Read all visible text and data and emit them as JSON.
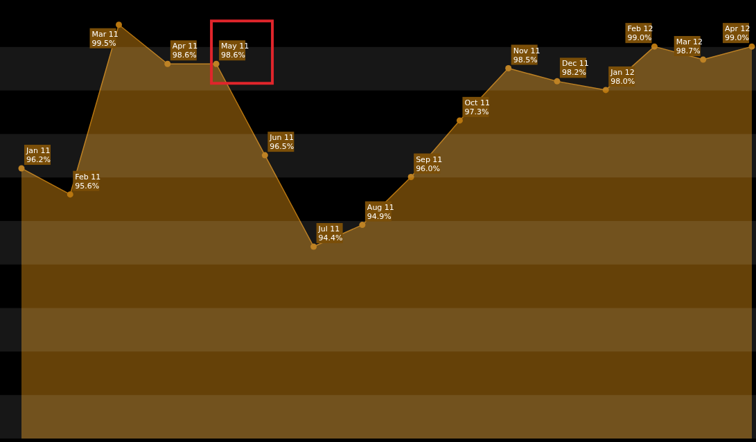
{
  "chart_data": {
    "type": "area",
    "categories": [
      null,
      null,
      null,
      null,
      null,
      null,
      null,
      null,
      null,
      null,
      null,
      null,
      null,
      null,
      null,
      null
    ],
    "series": [
      {
        "color": "#b8760f",
        "values": [
          96.2,
          95.6,
          99.5,
          98.6,
          98.6,
          96.5,
          94.4,
          94.9,
          96.0,
          97.3,
          98.5,
          98.2,
          98.0,
          99.0,
          98.7,
          99.0
        ],
        "value_labels": [
          "Jan 11\n96.2%",
          "Feb 11\n95.6%",
          "Mar 11\n99.5%",
          "Apr 11\n98.6%",
          "May 11\n98.6%",
          "Jun 11\n96.5%",
          "Jul 11\n94.4%",
          "Aug 11\n94.9%",
          "Sep 11\n96.0%",
          "Oct 11\n97.3%",
          "Nov 11\n98.5%",
          "Dec 11\n98.2%",
          "Jan 12\n98.0%",
          "Feb 12\n99.0%",
          "Mar 12\n98.7%",
          "Apr 12\n99.0%"
        ]
      }
    ],
    "marker": "circle"
  }
}
